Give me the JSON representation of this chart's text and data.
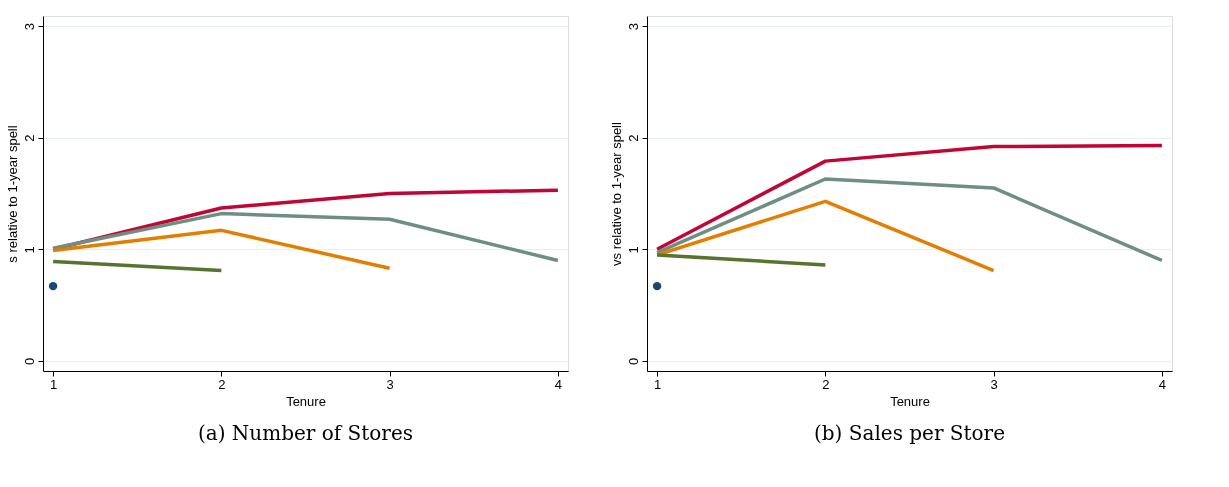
{
  "chart_data": [
    {
      "type": "line",
      "title": "(a) Number of Stores",
      "xlabel": "Tenure",
      "ylabel": "s relative to 1-year spell",
      "xlim": [
        0.94,
        4.06
      ],
      "xticks": [
        1,
        2,
        3,
        4
      ],
      "ylim": [
        -0.09,
        3.09
      ],
      "yticks": [
        0,
        1,
        2,
        3
      ],
      "grid": "y",
      "series": [
        {
          "color": "#c10534",
          "x": [
            1,
            2,
            3,
            4
          ],
          "values": [
            1.0,
            1.37,
            1.5,
            1.53
          ]
        },
        {
          "color": "#6e8e84",
          "x": [
            1,
            2,
            3,
            4
          ],
          "values": [
            1.01,
            1.32,
            1.27,
            0.9
          ]
        },
        {
          "color": "#e37e00",
          "x": [
            1,
            2,
            3
          ],
          "values": [
            0.99,
            1.17,
            0.83
          ]
        },
        {
          "color": "#55752f",
          "x": [
            1,
            2
          ],
          "values": [
            0.89,
            0.81
          ]
        },
        {
          "type": "scatter",
          "marker": "circle",
          "color": "#1a476f",
          "x": [
            1
          ],
          "values": [
            0.67
          ]
        }
      ]
    },
    {
      "type": "line",
      "title": "(b) Sales per Store",
      "xlabel": "Tenure",
      "ylabel": "vs relative to 1-year spell",
      "xlim": [
        0.94,
        4.06
      ],
      "xticks": [
        1,
        2,
        3,
        4
      ],
      "ylim": [
        -0.09,
        3.09
      ],
      "yticks": [
        0,
        1,
        2,
        3
      ],
      "grid": "y",
      "series": [
        {
          "color": "#c10534",
          "x": [
            1,
            2,
            3,
            4
          ],
          "values": [
            1.0,
            1.79,
            1.92,
            1.93
          ]
        },
        {
          "color": "#6e8e84",
          "x": [
            1,
            2,
            3,
            4
          ],
          "values": [
            0.97,
            1.63,
            1.55,
            0.9
          ]
        },
        {
          "color": "#e37e00",
          "x": [
            1,
            2,
            3
          ],
          "values": [
            0.95,
            1.43,
            0.81
          ]
        },
        {
          "color": "#55752f",
          "x": [
            1,
            2
          ],
          "values": [
            0.95,
            0.86
          ]
        },
        {
          "type": "scatter",
          "marker": "circle",
          "color": "#1a476f",
          "x": [
            1
          ],
          "values": [
            0.67
          ]
        }
      ]
    }
  ]
}
